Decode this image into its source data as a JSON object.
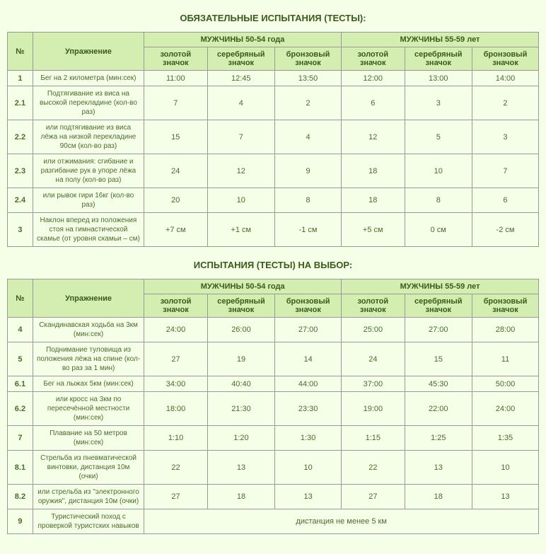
{
  "title1": "ОБЯЗАТЕЛЬНЫЕ ИСПЫТАНИЯ (ТЕСТЫ):",
  "title2": "ИСПЫТАНИЯ (ТЕСТЫ) НА ВЫБОР:",
  "headers": {
    "num": "№",
    "exercise": "Упражнение",
    "group1": "МУЖЧИНЫ 50-54 года",
    "group2": "МУЖЧИНЫ 55-59 лет",
    "gold": "золотой значок",
    "silver": "серебряный значок",
    "bronze": "бронзовый значок"
  },
  "table1": [
    {
      "num": "1",
      "ex": "Бег на 2 километра (мин:сек)",
      "v": [
        "11:00",
        "12:45",
        "13:50",
        "12:00",
        "13:00",
        "14:00"
      ]
    },
    {
      "num": "2.1",
      "ex": "Подтягивание из виса на высокой перекладине (кол-во раз)",
      "v": [
        "7",
        "4",
        "2",
        "6",
        "3",
        "2"
      ]
    },
    {
      "num": "2.2",
      "ex": "или подтягивание из виса лёжа на низкой перекладине 90см (кол-во раз)",
      "v": [
        "15",
        "7",
        "4",
        "12",
        "5",
        "3"
      ]
    },
    {
      "num": "2.3",
      "ex": "или отжимания: сгибание и разгибание рук в упоре лёжа на полу (кол-во раз)",
      "v": [
        "24",
        "12",
        "9",
        "18",
        "10",
        "7"
      ]
    },
    {
      "num": "2.4",
      "ex": "или рывок гири 16кг (кол-во раз)",
      "v": [
        "20",
        "10",
        "8",
        "18",
        "8",
        "6"
      ]
    },
    {
      "num": "3",
      "ex": "Наклон вперед из положения стоя на гимнастической скамье (от уровня скамьи – см)",
      "v": [
        "+7 см",
        "+1 см",
        "-1 см",
        "+5 см",
        "0 см",
        "-2 см"
      ]
    }
  ],
  "table2": [
    {
      "num": "4",
      "ex": "Скандинавская ходьба на 3км (мин:сек)",
      "v": [
        "24:00",
        "26:00",
        "27:00",
        "25:00",
        "27:00",
        "28:00"
      ]
    },
    {
      "num": "5",
      "ex": "Поднимание туловища из положения лёжа на спине (кол-во раз за 1 мин)",
      "v": [
        "27",
        "19",
        "14",
        "24",
        "15",
        "11"
      ]
    },
    {
      "num": "6.1",
      "ex": "Бег на лыжах 5км (мин:сек)",
      "v": [
        "34:00",
        "40:40",
        "44:00",
        "37:00",
        "45:30",
        "50:00"
      ]
    },
    {
      "num": "6.2",
      "ex": "или кросс на 3км по пересечённой местности (мин:сек)",
      "v": [
        "18:00",
        "21:30",
        "23:30",
        "19:00",
        "22:00",
        "24:00"
      ]
    },
    {
      "num": "7",
      "ex": "Плавание на 50 метров (мин:сек)",
      "v": [
        "1:10",
        "1:20",
        "1:30",
        "1:15",
        "1:25",
        "1:35"
      ]
    },
    {
      "num": "8.1",
      "ex": "Стрельба из пневматической винтовки, дистанция 10м (очки)",
      "v": [
        "22",
        "13",
        "10",
        "22",
        "13",
        "10"
      ]
    },
    {
      "num": "8.2",
      "ex": "или стрельба из \"электронного оружия\", дистанция 10м (очки)",
      "v": [
        "27",
        "18",
        "13",
        "27",
        "18",
        "13"
      ]
    }
  ],
  "table2_last": {
    "num": "9",
    "ex": "Туристический поход с проверкой туристских навыков",
    "note": "дистанция не менее 5 км"
  }
}
